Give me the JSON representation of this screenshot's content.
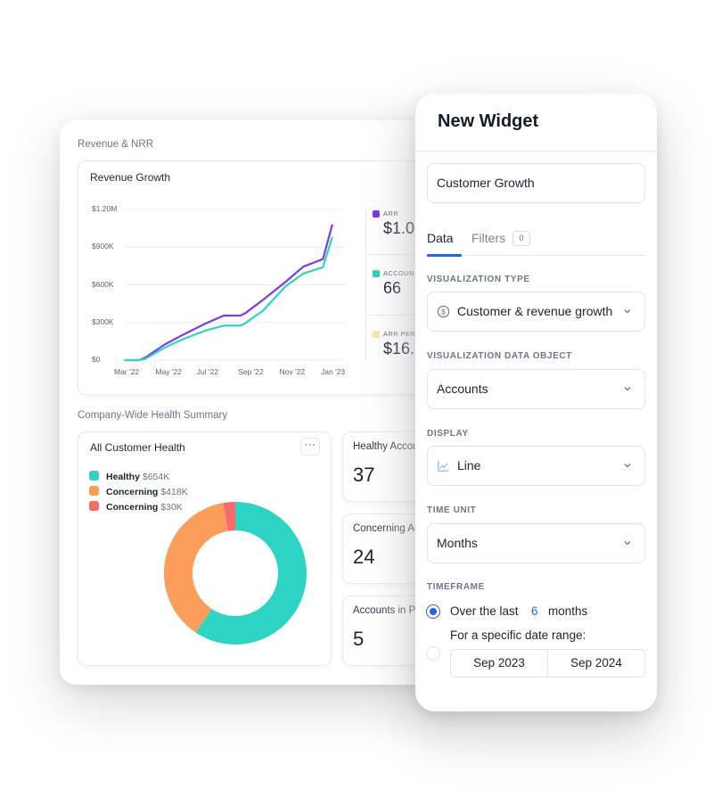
{
  "dashboard": {
    "revenue_section_label": "Revenue & NRR",
    "revenue_card": {
      "title": "Revenue Growth",
      "legend": [
        {
          "name": "ARR",
          "value": "$1.0",
          "color": "#7c3aed"
        },
        {
          "name": "ACCOUN",
          "value": "66",
          "color": "#2dd4bf"
        },
        {
          "name": "ARR PER",
          "value": "$16.",
          "color": "#fde68a"
        }
      ]
    },
    "health_section_label": "Company-Wide Health Summary",
    "health_card": {
      "title": "All Customer Health",
      "more_label": "···",
      "legend": [
        {
          "name": "Healthy",
          "value": "$654K",
          "color": "#2dd4c4"
        },
        {
          "name": "Concerning",
          "value": "$418K",
          "color": "#fb9d5b"
        },
        {
          "name": "Concerning",
          "value": "$30K",
          "color": "#f96a6a"
        }
      ]
    },
    "stat_cards": [
      {
        "label": "Healthy Accou",
        "value": "37"
      },
      {
        "label": "Concerning Ac",
        "value": "24"
      },
      {
        "label": "Accounts in Pe",
        "value": "5"
      }
    ]
  },
  "chart_data": [
    {
      "type": "line",
      "title": "Revenue Growth",
      "xlabel": "",
      "ylabel": "",
      "ylim": [
        0,
        1200000
      ],
      "y_ticks": [
        "$0",
        "$300K",
        "$600K",
        "$900K",
        "$1.20M"
      ],
      "y_tick_values": [
        0,
        300000,
        600000,
        900000,
        1200000
      ],
      "x_ticks": [
        "Mar '22",
        "May '22",
        "Jul '22",
        "Sep '22",
        "Nov '22",
        "Jan '23"
      ],
      "x_tick_months": [
        0,
        2,
        4,
        6,
        8,
        10
      ],
      "grid": true,
      "legend_position": "right",
      "series": [
        {
          "name": "ARR",
          "color": "#7c3aed",
          "x_months": [
            -0.1,
            0.6,
            0.9,
            1.85,
            2.7,
            3.8,
            4.7,
            5.5,
            5.75,
            6.6,
            7.7,
            8.55,
            9.5,
            9.95
          ],
          "values": [
            0,
            0,
            20000,
            125000,
            200000,
            290000,
            355000,
            355000,
            375000,
            480000,
            625000,
            745000,
            805000,
            1080000
          ]
        },
        {
          "name": "Accounts",
          "color": "#2dd4bf",
          "x_months": [
            -0.1,
            0.6,
            0.9,
            1.85,
            2.7,
            3.8,
            4.7,
            5.5,
            5.75,
            6.6,
            7.7,
            8.55,
            9.5,
            9.95
          ],
          "values": [
            0,
            0,
            10000,
            100000,
            165000,
            235000,
            275000,
            275000,
            295000,
            395000,
            590000,
            690000,
            740000,
            980000
          ]
        }
      ]
    },
    {
      "type": "pie",
      "title": "All Customer Health",
      "donut": true,
      "categories": [
        "Healthy",
        "Concerning",
        "Concerning"
      ],
      "values": [
        654000,
        418000,
        30000
      ],
      "labels": [
        "$654K",
        "$418K",
        "$30K"
      ],
      "colors": [
        "#2dd4c4",
        "#fb9d5b",
        "#f96a6a"
      ]
    }
  ],
  "widget": {
    "title": "New Widget",
    "name_input_value": "Customer Growth",
    "tabs": [
      {
        "label": "Data",
        "active": true
      },
      {
        "label": "Filters",
        "badge": "0",
        "active": false
      }
    ],
    "fields": {
      "visualization_type": {
        "label": "VISUALIZATION TYPE",
        "value": "Customer & revenue growth",
        "icon": "dollar-circle-icon"
      },
      "data_object": {
        "label": "VISUALIZATION DATA OBJECT",
        "value": "Accounts"
      },
      "display": {
        "label": "DISPLAY",
        "value": "Line",
        "icon": "line-chart-icon"
      },
      "time_unit": {
        "label": "TIME UNIT",
        "value": "Months"
      }
    },
    "timeframe": {
      "label": "TIMEFRAME",
      "option_last": {
        "prefix": "Over the last",
        "count": "6",
        "suffix": "months",
        "selected": true
      },
      "option_range": {
        "label": "For a specific date range:",
        "start": "Sep 2023",
        "end": "Sep 2024",
        "selected": false
      }
    },
    "accent_color": "#2563eb"
  }
}
